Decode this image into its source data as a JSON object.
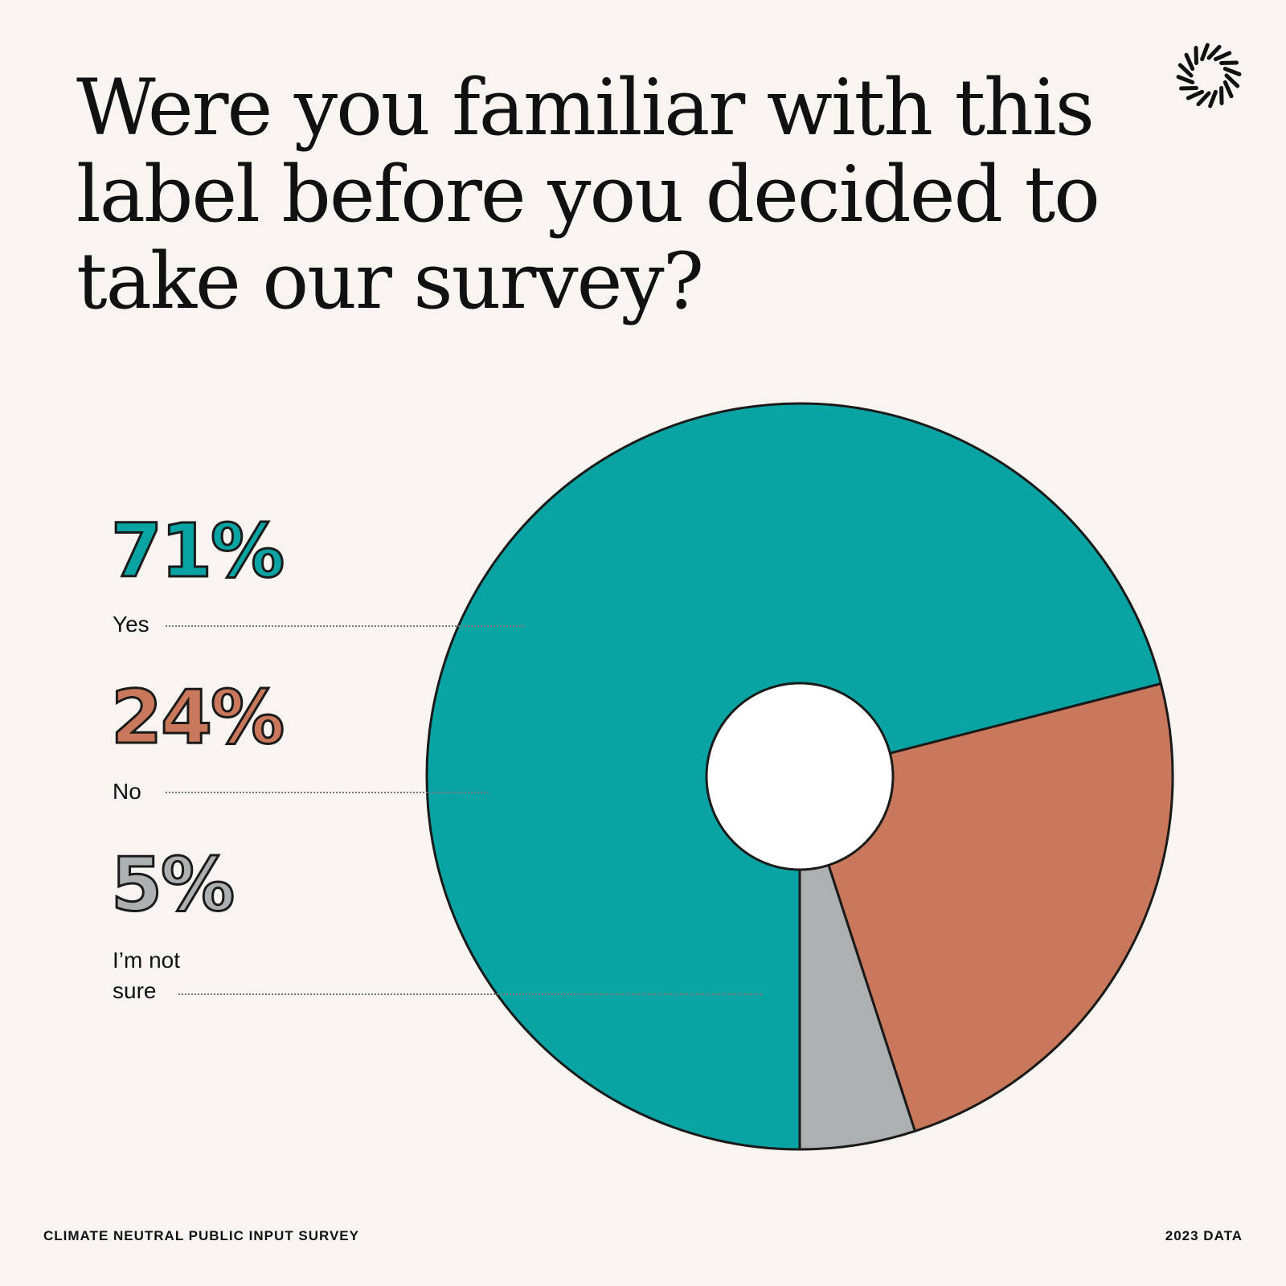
{
  "title": "Were you familiar with this label before you decided to take our survey?",
  "footer": {
    "left": "CLIMATE NEUTRAL PUBLIC INPUT SURVEY",
    "right": "2023 DATA"
  },
  "logo": {
    "icon": "sunburst-ring-icon"
  },
  "chart_data": {
    "type": "pie",
    "style": "donut",
    "title": "Were you familiar with this label before you decided to take our survey?",
    "slices": [
      {
        "label": "Yes",
        "value": 71,
        "value_label": "71%",
        "color": "#08a3a3"
      },
      {
        "label": "No",
        "value": 24,
        "value_label": "24%",
        "color": "#c9785c"
      },
      {
        "label": "I’m not sure",
        "label_lines": [
          "I’m not",
          "sure"
        ],
        "value": 5,
        "value_label": "5%",
        "color": "#acb0b1"
      }
    ],
    "legend": "left"
  }
}
